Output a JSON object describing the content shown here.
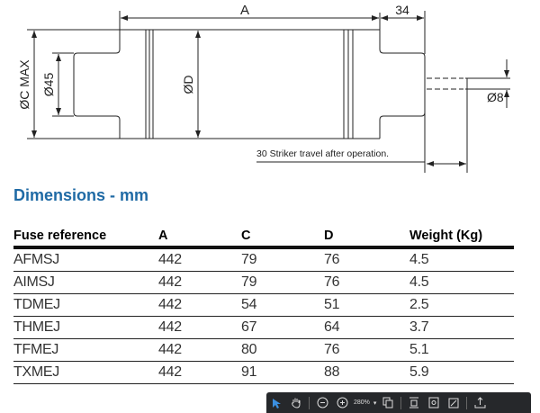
{
  "diagram": {
    "label_a": "A",
    "label_34": "34",
    "label_c": "ØC MAX",
    "label_45": "Ø45",
    "label_d": "ØD",
    "label_8": "Ø8",
    "striker_note": "30 Striker travel after operation."
  },
  "title": "Dimensions - mm",
  "table": {
    "headers": [
      "Fuse reference",
      "A",
      "C",
      "D",
      "Weight (Kg)"
    ],
    "rows": [
      [
        "AFMSJ",
        "442",
        "79",
        "76",
        "4.5"
      ],
      [
        "AIMSJ",
        "442",
        "79",
        "76",
        "4.5"
      ],
      [
        "TDMEJ",
        "442",
        "54",
        "51",
        "2.5"
      ],
      [
        "THMEJ",
        "442",
        "67",
        "64",
        "3.7"
      ],
      [
        "TFMEJ",
        "442",
        "80",
        "76",
        "5.1"
      ],
      [
        "TXMEJ",
        "442",
        "91",
        "88",
        "5.9"
      ]
    ]
  },
  "toolbar": {
    "zoom": "280%",
    "accent": "#3b8fe0",
    "icons": [
      "select-arrow-icon",
      "hand-icon",
      "zoom-out-icon",
      "zoom-in-icon",
      "copy-icon",
      "fit-page-icon",
      "page-settings-icon",
      "fullscreen-icon",
      "share-icon"
    ]
  }
}
